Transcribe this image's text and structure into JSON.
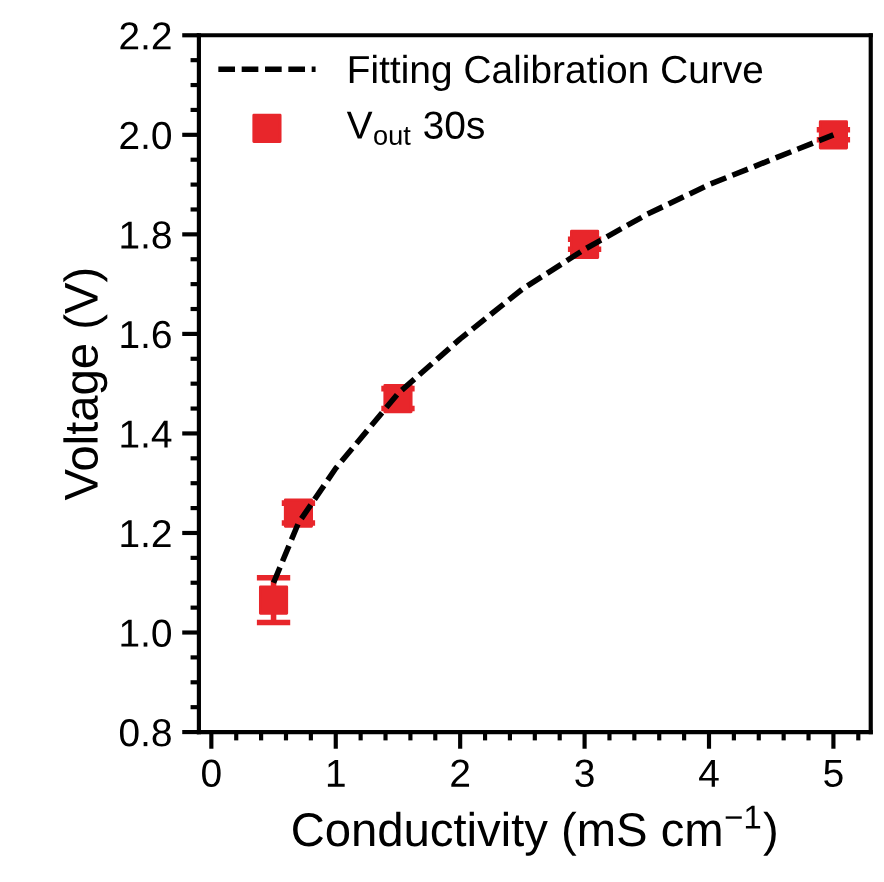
{
  "chart_data": {
    "type": "scatter",
    "xlabel": "Conductivity (mS cm$^{−1}$)",
    "ylabel": "Voltage (V)",
    "xlim": [
      -0.1,
      5.3
    ],
    "ylim": [
      0.8,
      2.2
    ],
    "xticks": [
      0,
      1,
      2,
      3,
      4,
      5
    ],
    "yticks": [
      0.8,
      {
        "value": 1,
        "label": "1.0"
      },
      1.2,
      1.4,
      1.6,
      1.8,
      {
        "value": 2,
        "label": "2.0"
      },
      2.2
    ],
    "legend": "top left",
    "grid": false,
    "series": [
      {
        "name": "Fitting Calibration Curve",
        "type": "line",
        "line_style": "dashed",
        "marker": "none",
        "color": "#000000",
        "x": [
          0.5,
          0.7,
          1.0,
          1.5,
          2.0,
          2.5,
          3.0,
          3.5,
          4.0,
          4.5,
          5.0
        ],
        "values": [
          1.1,
          1.22,
          1.33,
          1.48,
          1.59,
          1.69,
          1.77,
          1.84,
          1.9,
          1.95,
          2.0
        ]
      },
      {
        "name": "V$_{out}$ 30s",
        "marker": "square",
        "color": "#e8262b",
        "x": [
          0.5,
          0.7,
          1.5,
          3.0,
          5.0
        ],
        "values": [
          1.065,
          1.24,
          1.47,
          1.78,
          2.0
        ],
        "errors": [
          0.045,
          0.02,
          0.02,
          0.01,
          0.01
        ]
      }
    ]
  }
}
